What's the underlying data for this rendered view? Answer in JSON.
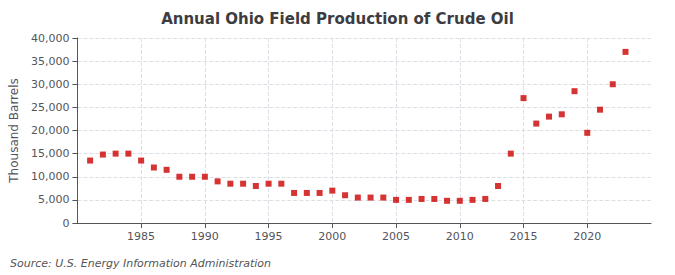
{
  "chart_data": {
    "type": "scatter",
    "title": "Annual Ohio Field Production of Crude Oil",
    "ylabel": "Thousand Barrels",
    "annotation": "Source: U.S. Energy Information Administration",
    "color": "#cc0000",
    "marker": "square",
    "x": [
      1981,
      1982,
      1983,
      1984,
      1985,
      1986,
      1987,
      1988,
      1989,
      1990,
      1991,
      1992,
      1993,
      1994,
      1995,
      1996,
      1997,
      1998,
      1999,
      2000,
      2001,
      2002,
      2003,
      2004,
      2005,
      2006,
      2007,
      2008,
      2009,
      2010,
      2011,
      2012,
      2013,
      2014,
      2015,
      2016,
      2017,
      2018,
      2019,
      2020,
      2021,
      2022,
      2023
    ],
    "values": [
      13500,
      14800,
      15000,
      15000,
      13500,
      12000,
      11500,
      10000,
      10000,
      10000,
      9000,
      8500,
      8500,
      8000,
      8500,
      8500,
      6500,
      6500,
      6500,
      7000,
      6000,
      5500,
      5500,
      5500,
      5000,
      5000,
      5200,
      5200,
      4800,
      4800,
      5000,
      5200,
      8000,
      15000,
      27000,
      21500,
      23000,
      23500,
      28500,
      19500,
      24500,
      30000,
      37000
    ],
    "xlim": [
      1980,
      2025
    ],
    "xticks": [
      1985,
      1990,
      1995,
      2000,
      2005,
      2010,
      2015,
      2020
    ],
    "ylim": [
      0,
      40000
    ],
    "yticks": [
      0,
      {
        "value": 5000,
        "label": "5,000"
      },
      {
        "value": 10000,
        "label": "10,000"
      },
      {
        "value": 15000,
        "label": "15,000"
      },
      {
        "value": 20000,
        "label": "20,000"
      },
      {
        "value": 25000,
        "label": "25,000"
      },
      {
        "value": 30000,
        "label": "30,000"
      },
      {
        "value": 35000,
        "label": "35,000"
      },
      {
        "value": 40000,
        "label": "40,000"
      }
    ],
    "grid": true
  }
}
